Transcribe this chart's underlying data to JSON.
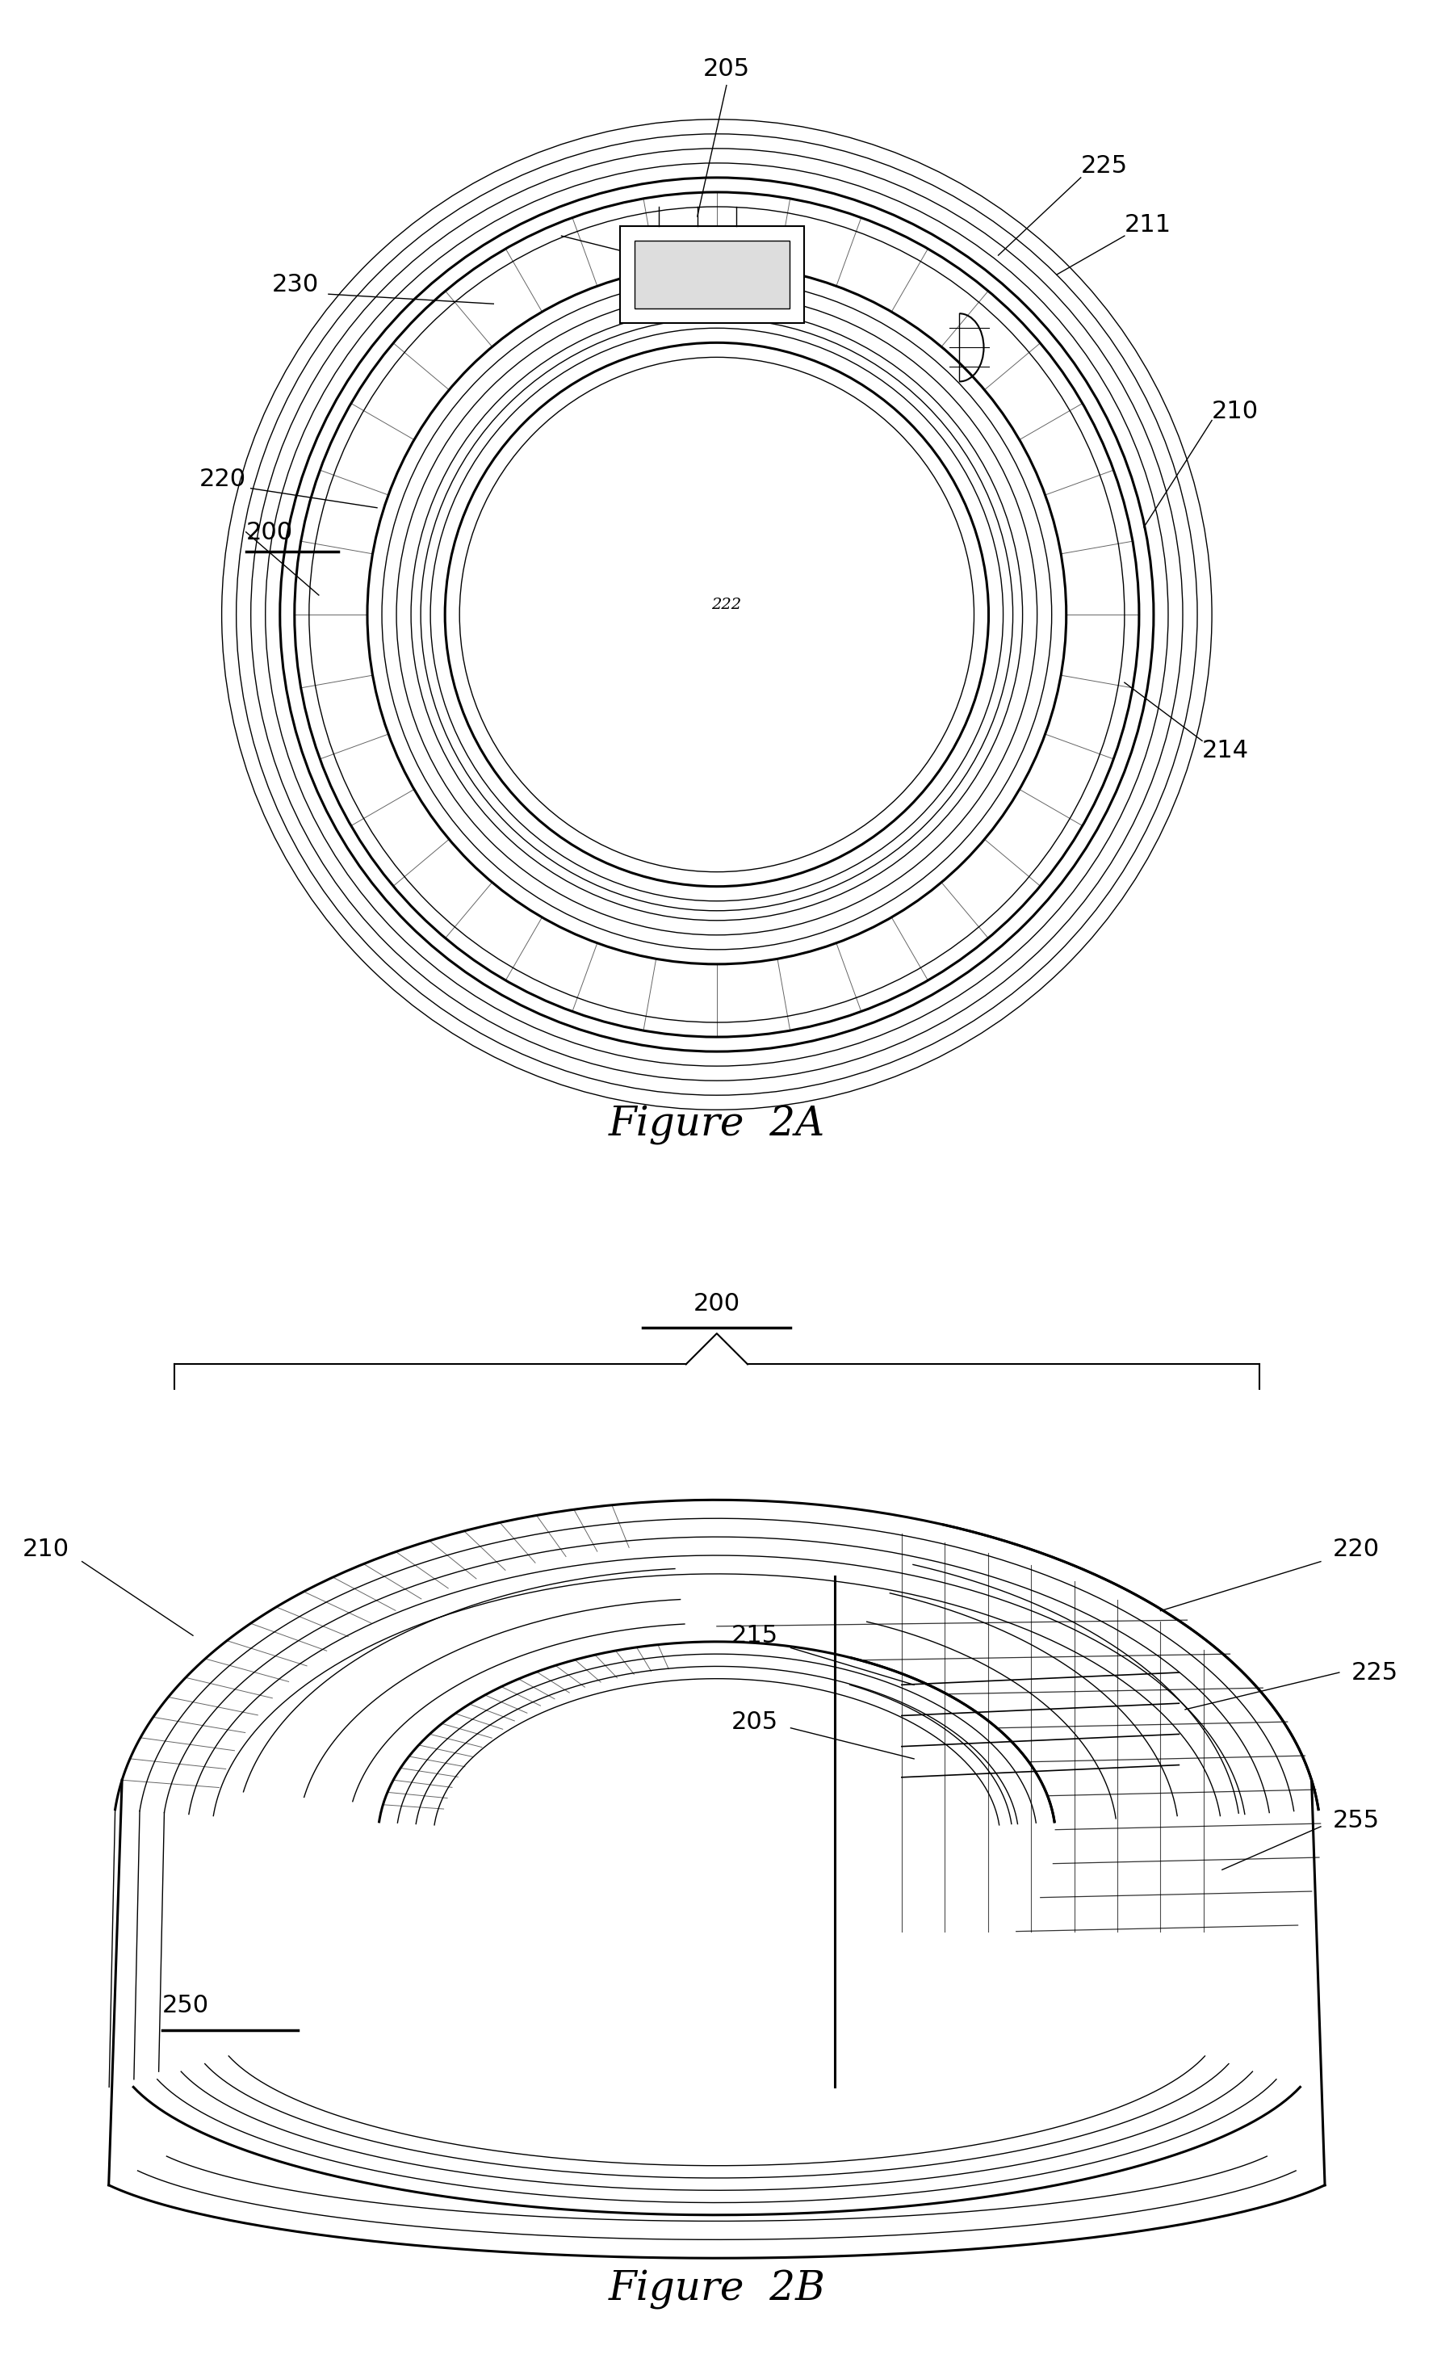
{
  "bg_color": "#ffffff",
  "fig_width": 20.38,
  "fig_height": 30.7,
  "fig2a_title": "Figure  2A",
  "fig2b_title": "Figure  2B",
  "line_color": "#000000",
  "label_fontsize": 22,
  "title_fontsize": 36
}
